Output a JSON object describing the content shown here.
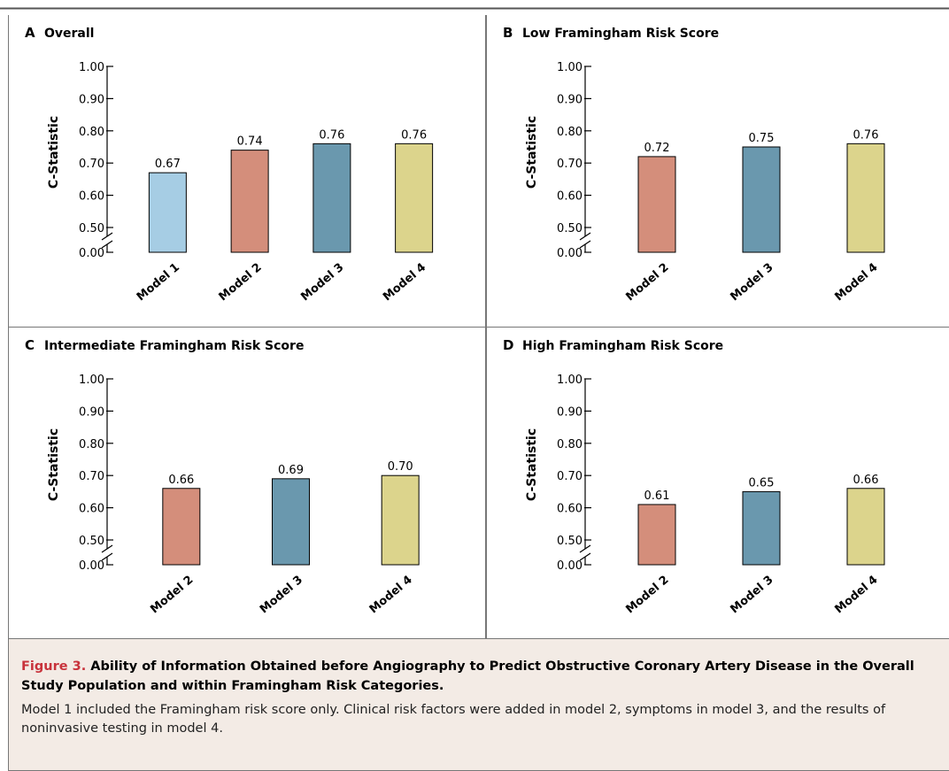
{
  "chart_data": [
    {
      "type": "bar",
      "panel_letter": "A",
      "title": "Overall",
      "ylabel": "C-Statistic",
      "categories": [
        "Model 1",
        "Model 2",
        "Model 3",
        "Model 4"
      ],
      "values": [
        0.67,
        0.74,
        0.76,
        0.76
      ],
      "value_labels": [
        "0.67",
        "0.74",
        "0.76",
        "0.76"
      ],
      "colors": [
        "#a6cde4",
        "#d48e7b",
        "#6a98ae",
        "#dcd48c"
      ],
      "ylim": [
        0.5,
        1.0
      ],
      "axis_break": true,
      "yticks": [
        "1.00",
        "0.90",
        "0.80",
        "0.70",
        "0.60",
        "0.50"
      ],
      "y_origin_label": "0.00",
      "grid": false,
      "legend": "none"
    },
    {
      "type": "bar",
      "panel_letter": "B",
      "title": "Low Framingham Risk Score",
      "ylabel": "C-Statistic",
      "categories": [
        "Model 2",
        "Model 3",
        "Model 4"
      ],
      "values": [
        0.72,
        0.75,
        0.76
      ],
      "value_labels": [
        "0.72",
        "0.75",
        "0.76"
      ],
      "colors": [
        "#d48e7b",
        "#6a98ae",
        "#dcd48c"
      ],
      "ylim": [
        0.5,
        1.0
      ],
      "axis_break": true,
      "yticks": [
        "1.00",
        "0.90",
        "0.80",
        "0.70",
        "0.60",
        "0.50"
      ],
      "y_origin_label": "0.00",
      "grid": false,
      "legend": "none"
    },
    {
      "type": "bar",
      "panel_letter": "C",
      "title": "Intermediate Framingham Risk Score",
      "ylabel": "C-Statistic",
      "categories": [
        "Model 2",
        "Model 3",
        "Model 4"
      ],
      "values": [
        0.66,
        0.69,
        0.7
      ],
      "value_labels": [
        "0.66",
        "0.69",
        "0.70"
      ],
      "colors": [
        "#d48e7b",
        "#6a98ae",
        "#dcd48c"
      ],
      "ylim": [
        0.5,
        1.0
      ],
      "axis_break": true,
      "yticks": [
        "1.00",
        "0.90",
        "0.80",
        "0.70",
        "0.60",
        "0.50"
      ],
      "y_origin_label": "0.00",
      "grid": false,
      "legend": "none"
    },
    {
      "type": "bar",
      "panel_letter": "D",
      "title": "High Framingham Risk Score",
      "ylabel": "C-Statistic",
      "categories": [
        "Model 2",
        "Model 3",
        "Model 4"
      ],
      "values": [
        0.61,
        0.65,
        0.66
      ],
      "value_labels": [
        "0.61",
        "0.65",
        "0.66"
      ],
      "colors": [
        "#d48e7b",
        "#6a98ae",
        "#dcd48c"
      ],
      "ylim": [
        0.5,
        1.0
      ],
      "axis_break": true,
      "yticks": [
        "1.00",
        "0.90",
        "0.80",
        "0.70",
        "0.60",
        "0.50"
      ],
      "y_origin_label": "0.00",
      "grid": false,
      "legend": "none"
    }
  ],
  "caption": {
    "label": "Figure 3.",
    "title": " Ability of Information Obtained before Angiography to Predict Obstructive Coronary Artery Disease in the Overall Study Population and within Framingham Risk Categories.",
    "text": "Model 1 included the Framingham risk score only. Clinical risk factors were added in model 2, symptoms in model 3, and the results of noninvasive testing in model 4."
  },
  "colors": {
    "panel_border": "#777777",
    "caption_background": "#f3ebe5",
    "caption_label": "#c8323b",
    "bar_outline": "#000000"
  }
}
